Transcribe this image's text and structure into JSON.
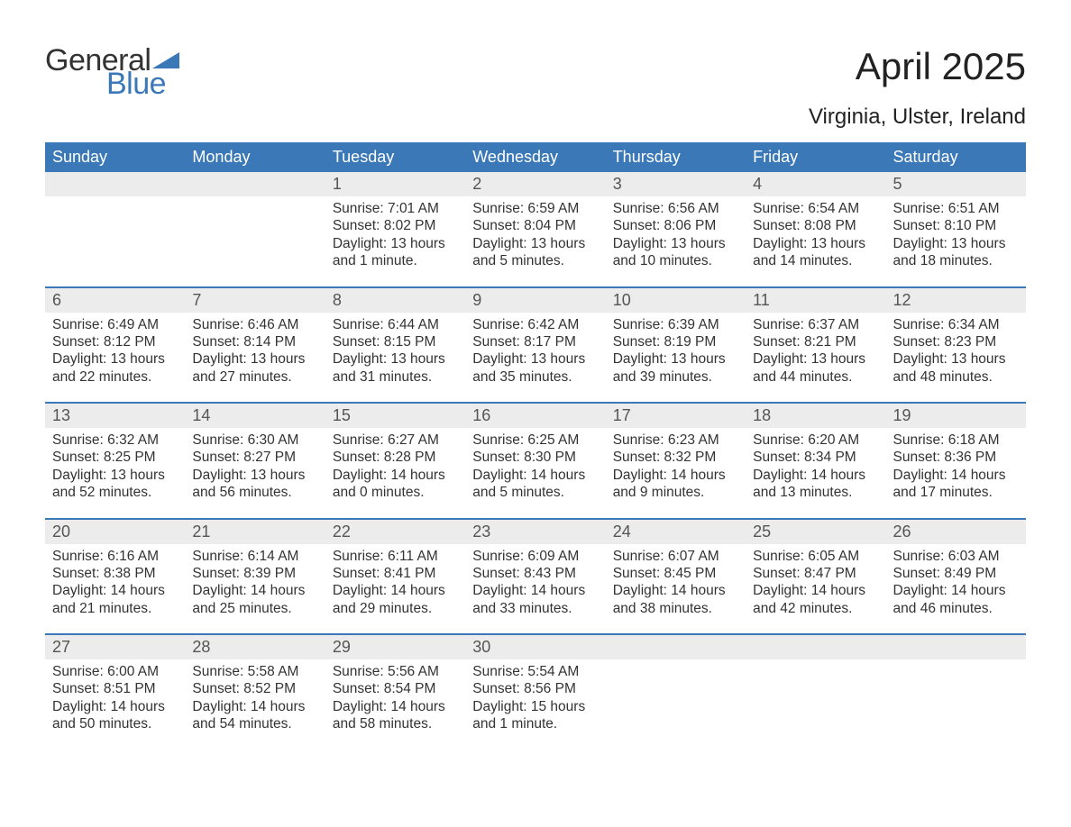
{
  "brand": {
    "word1": "General",
    "word2": "Blue",
    "word1_color": "#333333",
    "word2_color": "#3b78b8",
    "triangle_color": "#3b78b8"
  },
  "title": "April 2025",
  "subtitle": "Virginia, Ulster, Ireland",
  "colors": {
    "header_bg": "#3b78b8",
    "header_text": "#ffffff",
    "daynum_bg": "#ececec",
    "text": "#333333",
    "week_border": "#3b78b8"
  },
  "typography": {
    "title_fontsize": 42,
    "subtitle_fontsize": 24,
    "dow_fontsize": 18,
    "daynum_fontsize": 18,
    "body_fontsize": 15.5,
    "font_family": "Arial"
  },
  "day_names": [
    "Sunday",
    "Monday",
    "Tuesday",
    "Wednesday",
    "Thursday",
    "Friday",
    "Saturday"
  ],
  "weeks": [
    [
      null,
      null,
      {
        "n": "1",
        "sr": "7:01 AM",
        "ss": "8:02 PM",
        "dl": "13 hours and 1 minute."
      },
      {
        "n": "2",
        "sr": "6:59 AM",
        "ss": "8:04 PM",
        "dl": "13 hours and 5 minutes."
      },
      {
        "n": "3",
        "sr": "6:56 AM",
        "ss": "8:06 PM",
        "dl": "13 hours and 10 minutes."
      },
      {
        "n": "4",
        "sr": "6:54 AM",
        "ss": "8:08 PM",
        "dl": "13 hours and 14 minutes."
      },
      {
        "n": "5",
        "sr": "6:51 AM",
        "ss": "8:10 PM",
        "dl": "13 hours and 18 minutes."
      }
    ],
    [
      {
        "n": "6",
        "sr": "6:49 AM",
        "ss": "8:12 PM",
        "dl": "13 hours and 22 minutes."
      },
      {
        "n": "7",
        "sr": "6:46 AM",
        "ss": "8:14 PM",
        "dl": "13 hours and 27 minutes."
      },
      {
        "n": "8",
        "sr": "6:44 AM",
        "ss": "8:15 PM",
        "dl": "13 hours and 31 minutes."
      },
      {
        "n": "9",
        "sr": "6:42 AM",
        "ss": "8:17 PM",
        "dl": "13 hours and 35 minutes."
      },
      {
        "n": "10",
        "sr": "6:39 AM",
        "ss": "8:19 PM",
        "dl": "13 hours and 39 minutes."
      },
      {
        "n": "11",
        "sr": "6:37 AM",
        "ss": "8:21 PM",
        "dl": "13 hours and 44 minutes."
      },
      {
        "n": "12",
        "sr": "6:34 AM",
        "ss": "8:23 PM",
        "dl": "13 hours and 48 minutes."
      }
    ],
    [
      {
        "n": "13",
        "sr": "6:32 AM",
        "ss": "8:25 PM",
        "dl": "13 hours and 52 minutes."
      },
      {
        "n": "14",
        "sr": "6:30 AM",
        "ss": "8:27 PM",
        "dl": "13 hours and 56 minutes."
      },
      {
        "n": "15",
        "sr": "6:27 AM",
        "ss": "8:28 PM",
        "dl": "14 hours and 0 minutes."
      },
      {
        "n": "16",
        "sr": "6:25 AM",
        "ss": "8:30 PM",
        "dl": "14 hours and 5 minutes."
      },
      {
        "n": "17",
        "sr": "6:23 AM",
        "ss": "8:32 PM",
        "dl": "14 hours and 9 minutes."
      },
      {
        "n": "18",
        "sr": "6:20 AM",
        "ss": "8:34 PM",
        "dl": "14 hours and 13 minutes."
      },
      {
        "n": "19",
        "sr": "6:18 AM",
        "ss": "8:36 PM",
        "dl": "14 hours and 17 minutes."
      }
    ],
    [
      {
        "n": "20",
        "sr": "6:16 AM",
        "ss": "8:38 PM",
        "dl": "14 hours and 21 minutes."
      },
      {
        "n": "21",
        "sr": "6:14 AM",
        "ss": "8:39 PM",
        "dl": "14 hours and 25 minutes."
      },
      {
        "n": "22",
        "sr": "6:11 AM",
        "ss": "8:41 PM",
        "dl": "14 hours and 29 minutes."
      },
      {
        "n": "23",
        "sr": "6:09 AM",
        "ss": "8:43 PM",
        "dl": "14 hours and 33 minutes."
      },
      {
        "n": "24",
        "sr": "6:07 AM",
        "ss": "8:45 PM",
        "dl": "14 hours and 38 minutes."
      },
      {
        "n": "25",
        "sr": "6:05 AM",
        "ss": "8:47 PM",
        "dl": "14 hours and 42 minutes."
      },
      {
        "n": "26",
        "sr": "6:03 AM",
        "ss": "8:49 PM",
        "dl": "14 hours and 46 minutes."
      }
    ],
    [
      {
        "n": "27",
        "sr": "6:00 AM",
        "ss": "8:51 PM",
        "dl": "14 hours and 50 minutes."
      },
      {
        "n": "28",
        "sr": "5:58 AM",
        "ss": "8:52 PM",
        "dl": "14 hours and 54 minutes."
      },
      {
        "n": "29",
        "sr": "5:56 AM",
        "ss": "8:54 PM",
        "dl": "14 hours and 58 minutes."
      },
      {
        "n": "30",
        "sr": "5:54 AM",
        "ss": "8:56 PM",
        "dl": "15 hours and 1 minute."
      },
      null,
      null,
      null
    ]
  ],
  "labels": {
    "sunrise": "Sunrise: ",
    "sunset": "Sunset: ",
    "daylight": "Daylight: "
  }
}
